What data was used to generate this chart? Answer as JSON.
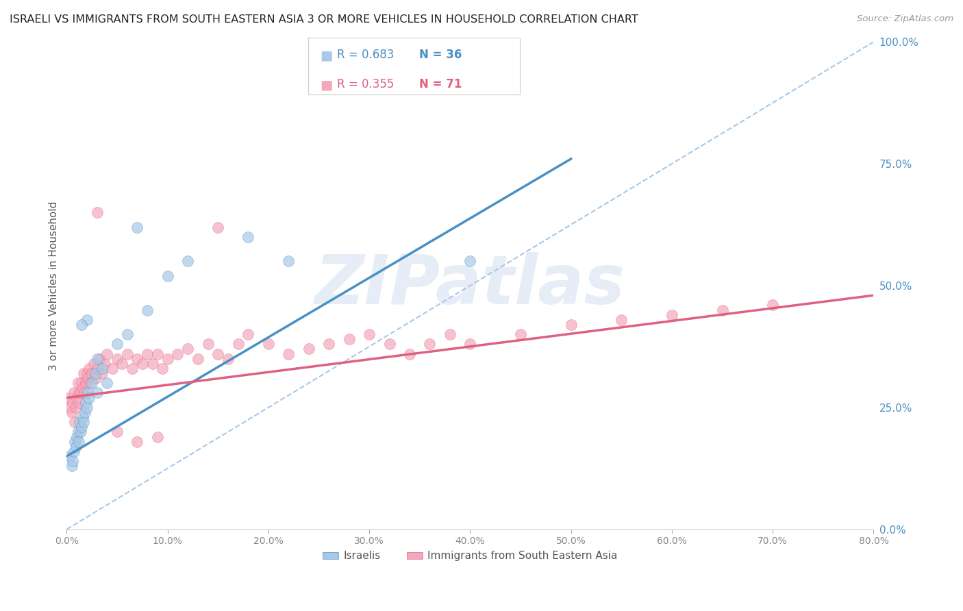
{
  "title": "ISRAELI VS IMMIGRANTS FROM SOUTH EASTERN ASIA 3 OR MORE VEHICLES IN HOUSEHOLD CORRELATION CHART",
  "source": "Source: ZipAtlas.com",
  "ylabel": "3 or more Vehicles in Household",
  "xlim": [
    0.0,
    80.0
  ],
  "ylim": [
    0.0,
    100.0
  ],
  "xticks": [
    0.0,
    10.0,
    20.0,
    30.0,
    40.0,
    50.0,
    60.0,
    70.0,
    80.0
  ],
  "yticks_right": [
    0.0,
    25.0,
    50.0,
    75.0,
    100.0
  ],
  "legend_r1": "R = 0.683",
  "legend_n1": "N = 36",
  "legend_r2": "R = 0.355",
  "legend_n2": "N = 71",
  "label1": "Israelis",
  "label2": "Immigrants from South Eastern Asia",
  "color1": "#a8c8e8",
  "color2": "#f4a8bb",
  "trend_color1": "#4a90c4",
  "trend_color2": "#e06080",
  "ref_line_color": "#a8c8e8",
  "watermark_color": "#c8d8ec",
  "watermark_text": "ZIPatlas",
  "title_color": "#222222",
  "axis_label_color": "#555555",
  "tick_color_right": "#4a90c4",
  "tick_color_bottom": "#888888",
  "background_color": "#ffffff",
  "grid_color": "#e0e0e0",
  "israelis_x": [
    0.3,
    0.5,
    0.6,
    0.7,
    0.8,
    0.9,
    1.0,
    1.1,
    1.2,
    1.3,
    1.4,
    1.5,
    1.6,
    1.7,
    1.8,
    1.9,
    2.0,
    2.1,
    2.2,
    2.5,
    2.8,
    3.0,
    3.5,
    4.0,
    5.0,
    6.0,
    8.0,
    10.0,
    12.0,
    18.0,
    22.0,
    40.0,
    3.0,
    2.0,
    1.5,
    7.0
  ],
  "israelis_y": [
    15.0,
    13.0,
    14.0,
    16.0,
    18.0,
    17.0,
    19.0,
    20.0,
    18.0,
    22.0,
    20.0,
    21.0,
    23.0,
    22.0,
    24.0,
    26.0,
    25.0,
    28.0,
    27.0,
    30.0,
    32.0,
    35.0,
    33.0,
    30.0,
    38.0,
    40.0,
    45.0,
    52.0,
    55.0,
    60.0,
    55.0,
    55.0,
    28.0,
    43.0,
    42.0,
    62.0
  ],
  "sea_x": [
    0.2,
    0.4,
    0.5,
    0.6,
    0.7,
    0.8,
    0.9,
    1.0,
    1.1,
    1.2,
    1.3,
    1.4,
    1.5,
    1.6,
    1.7,
    1.8,
    1.9,
    2.0,
    2.1,
    2.2,
    2.3,
    2.5,
    2.7,
    2.9,
    3.1,
    3.3,
    3.5,
    3.8,
    4.0,
    4.5,
    5.0,
    5.5,
    6.0,
    6.5,
    7.0,
    7.5,
    8.0,
    8.5,
    9.0,
    9.5,
    10.0,
    11.0,
    12.0,
    13.0,
    14.0,
    15.0,
    16.0,
    17.0,
    18.0,
    20.0,
    22.0,
    24.0,
    26.0,
    28.0,
    30.0,
    32.0,
    34.0,
    36.0,
    38.0,
    40.0,
    45.0,
    50.0,
    55.0,
    60.0,
    65.0,
    70.0,
    3.0,
    5.0,
    7.0,
    9.0,
    15.0
  ],
  "sea_y": [
    27.0,
    25.0,
    24.0,
    26.0,
    28.0,
    22.0,
    25.0,
    27.0,
    30.0,
    28.0,
    26.0,
    28.0,
    30.0,
    29.0,
    32.0,
    28.0,
    30.0,
    32.0,
    31.0,
    33.0,
    30.0,
    32.0,
    34.0,
    31.0,
    33.0,
    35.0,
    32.0,
    34.0,
    36.0,
    33.0,
    35.0,
    34.0,
    36.0,
    33.0,
    35.0,
    34.0,
    36.0,
    34.0,
    36.0,
    33.0,
    35.0,
    36.0,
    37.0,
    35.0,
    38.0,
    36.0,
    35.0,
    38.0,
    40.0,
    38.0,
    36.0,
    37.0,
    38.0,
    39.0,
    40.0,
    38.0,
    36.0,
    38.0,
    40.0,
    38.0,
    40.0,
    42.0,
    43.0,
    44.0,
    45.0,
    46.0,
    65.0,
    20.0,
    18.0,
    19.0,
    62.0
  ],
  "blue_trendline_x": [
    0.0,
    50.0
  ],
  "blue_trendline_y": [
    15.0,
    76.0
  ],
  "pink_trendline_x": [
    0.0,
    80.0
  ],
  "pink_trendline_y": [
    27.0,
    48.0
  ]
}
